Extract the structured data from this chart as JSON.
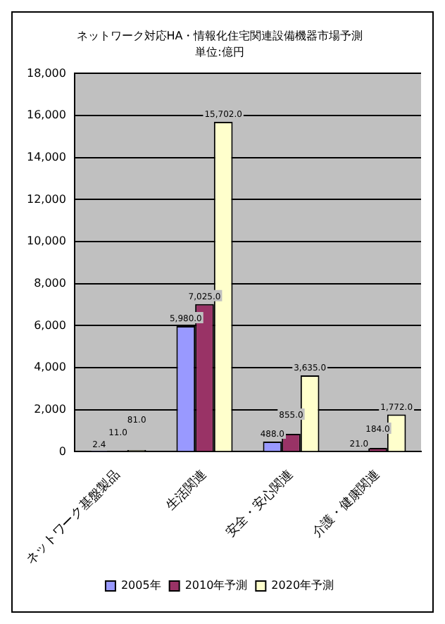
{
  "chart_data": {
    "type": "bar",
    "title": "ネットワーク対応HA・情報化住宅関連設備機器市場予測",
    "subtitle": "単位:億円",
    "categories": [
      "ネットワーク基盤製品",
      "生活関連",
      "安全・安心関連",
      "介護・健康関連"
    ],
    "series": [
      {
        "name": "2005年",
        "color": "#9999ff",
        "values": [
          2.4,
          5980,
          488,
          21
        ],
        "value_labels": [
          "2.4",
          "5,980.0",
          "488.0",
          "21.0"
        ]
      },
      {
        "name": "2010年予測",
        "color": "#993366",
        "values": [
          11,
          7025,
          855,
          184
        ],
        "value_labels": [
          "11.0",
          "7,025.0",
          "855.0",
          "184.0"
        ]
      },
      {
        "name": "2020年予測",
        "color": "#ffffcc",
        "values": [
          81,
          15702,
          3635,
          1772
        ],
        "value_labels": [
          "81.0",
          "15,702.0",
          "3,635.0",
          "1,772.0"
        ]
      }
    ],
    "ylim": [
      0,
      18000
    ],
    "yticks": [
      0,
      {
        "value": 2000,
        "label": "2,000"
      },
      {
        "value": 4000,
        "label": "4,000"
      },
      {
        "value": 6000,
        "label": "6,000"
      },
      {
        "value": 8000,
        "label": "8,000"
      },
      {
        "value": 10000,
        "label": "10,000"
      },
      {
        "value": 12000,
        "label": "12,000"
      },
      {
        "value": 14000,
        "label": "14,000"
      },
      {
        "value": 16000,
        "label": "16,000"
      },
      {
        "value": 18000,
        "label": "18,000"
      }
    ],
    "grid": "y",
    "legend": "bottom"
  }
}
